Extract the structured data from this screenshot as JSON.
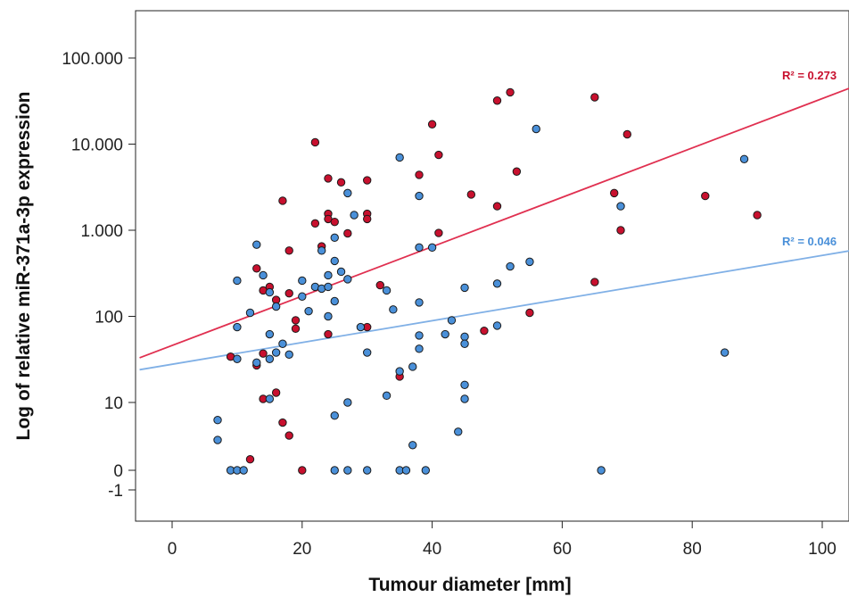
{
  "chart_data": {
    "type": "scatter",
    "title": "",
    "xlabel": "Tumour diameter [mm]",
    "ylabel": "Log of relative miR-371a-3p expression",
    "xlim": [
      -5,
      105
    ],
    "x_ticks": [
      {
        "value": 0,
        "label": "0"
      },
      {
        "value": 20,
        "label": "20"
      },
      {
        "value": 40,
        "label": "40"
      },
      {
        "value": 60,
        "label": "60"
      },
      {
        "value": 80,
        "label": "80"
      },
      {
        "value": 100,
        "label": "100"
      }
    ],
    "y_scale": "log (symlog-like)",
    "y_ticks": [
      {
        "value": -1,
        "label": "-1"
      },
      {
        "value": 0,
        "label": "0"
      },
      {
        "value": 10,
        "label": "10"
      },
      {
        "value": 100,
        "label": "100"
      },
      {
        "value": 1000,
        "label": "1.000"
      },
      {
        "value": 10000,
        "label": "10.000"
      },
      {
        "value": 100000,
        "label": "100.000"
      }
    ],
    "grid": false,
    "series": [
      {
        "color": "#c8102e",
        "fit_line_color": "#e03050",
        "r2_label": "R² = 0.273",
        "fit": {
          "x": [
            -5,
            105
          ],
          "y": [
            33,
            47000
          ]
        },
        "points": [
          [
            9,
            34
          ],
          [
            12,
            0.5
          ],
          [
            13,
            360
          ],
          [
            13,
            27
          ],
          [
            14,
            37
          ],
          [
            14,
            200
          ],
          [
            14,
            11
          ],
          [
            15,
            220
          ],
          [
            16,
            155
          ],
          [
            16,
            13
          ],
          [
            17,
            2200
          ],
          [
            17,
            4.5
          ],
          [
            18,
            580
          ],
          [
            18,
            185
          ],
          [
            18,
            2.5
          ],
          [
            19,
            90
          ],
          [
            19,
            72
          ],
          [
            20,
            0
          ],
          [
            22,
            10500
          ],
          [
            22,
            1200
          ],
          [
            23,
            650
          ],
          [
            24,
            4000
          ],
          [
            24,
            1550
          ],
          [
            24,
            1350
          ],
          [
            24,
            62
          ],
          [
            25,
            1250
          ],
          [
            26,
            3600
          ],
          [
            27,
            920
          ],
          [
            30,
            3800
          ],
          [
            30,
            1550
          ],
          [
            30,
            1350
          ],
          [
            30,
            75
          ],
          [
            32,
            230
          ],
          [
            35,
            20
          ],
          [
            38,
            4400
          ],
          [
            40,
            17000
          ],
          [
            41,
            7500
          ],
          [
            41,
            930
          ],
          [
            46,
            2600
          ],
          [
            48,
            68
          ],
          [
            50,
            32000
          ],
          [
            50,
            1900
          ],
          [
            52,
            40000
          ],
          [
            53,
            4800
          ],
          [
            55,
            110
          ],
          [
            65,
            35000
          ],
          [
            65,
            250
          ],
          [
            68,
            2700
          ],
          [
            69,
            1000
          ],
          [
            70,
            13000
          ],
          [
            82,
            2500
          ],
          [
            90,
            1500
          ]
        ]
      },
      {
        "color": "#4a90d9",
        "fit_line_color": "#80b0e6",
        "r2_label": "R² = 0.046",
        "fit": {
          "x": [
            -5,
            105
          ],
          "y": [
            24,
            590
          ]
        },
        "points": [
          [
            7,
            5
          ],
          [
            7,
            2
          ],
          [
            9,
            0
          ],
          [
            10,
            0
          ],
          [
            10,
            260
          ],
          [
            10,
            75
          ],
          [
            10,
            32
          ],
          [
            11,
            0
          ],
          [
            12,
            110
          ],
          [
            13,
            680
          ],
          [
            13,
            29
          ],
          [
            14,
            300
          ],
          [
            15,
            190
          ],
          [
            15,
            62
          ],
          [
            15,
            32
          ],
          [
            15,
            11
          ],
          [
            16,
            130
          ],
          [
            16,
            38
          ],
          [
            17,
            48
          ],
          [
            18,
            36
          ],
          [
            20,
            260
          ],
          [
            20,
            170
          ],
          [
            21,
            115
          ],
          [
            22,
            220
          ],
          [
            23,
            580
          ],
          [
            23,
            210
          ],
          [
            24,
            300
          ],
          [
            24,
            220
          ],
          [
            24,
            100
          ],
          [
            25,
            440
          ],
          [
            25,
            150
          ],
          [
            25,
            820
          ],
          [
            25,
            6
          ],
          [
            25,
            0
          ],
          [
            26,
            330
          ],
          [
            27,
            2700
          ],
          [
            27,
            270
          ],
          [
            27,
            10
          ],
          [
            27,
            0
          ],
          [
            28,
            1500
          ],
          [
            29,
            75
          ],
          [
            30,
            38
          ],
          [
            30,
            0
          ],
          [
            33,
            200
          ],
          [
            33,
            12
          ],
          [
            34,
            120
          ],
          [
            35,
            7000
          ],
          [
            35,
            23
          ],
          [
            35,
            0
          ],
          [
            36,
            0
          ],
          [
            37,
            26
          ],
          [
            37,
            1.5
          ],
          [
            38,
            2500
          ],
          [
            38,
            630
          ],
          [
            38,
            145
          ],
          [
            38,
            60
          ],
          [
            38,
            42
          ],
          [
            39,
            0
          ],
          [
            40,
            630
          ],
          [
            42,
            62
          ],
          [
            43,
            90
          ],
          [
            44,
            3
          ],
          [
            45,
            215
          ],
          [
            45,
            58
          ],
          [
            45,
            48
          ],
          [
            45,
            16
          ],
          [
            45,
            11
          ],
          [
            50,
            240
          ],
          [
            50,
            78
          ],
          [
            52,
            380
          ],
          [
            55,
            430
          ],
          [
            56,
            15000
          ],
          [
            66,
            0
          ],
          [
            69,
            1900
          ],
          [
            85,
            38
          ],
          [
            88,
            6700
          ]
        ]
      }
    ]
  }
}
